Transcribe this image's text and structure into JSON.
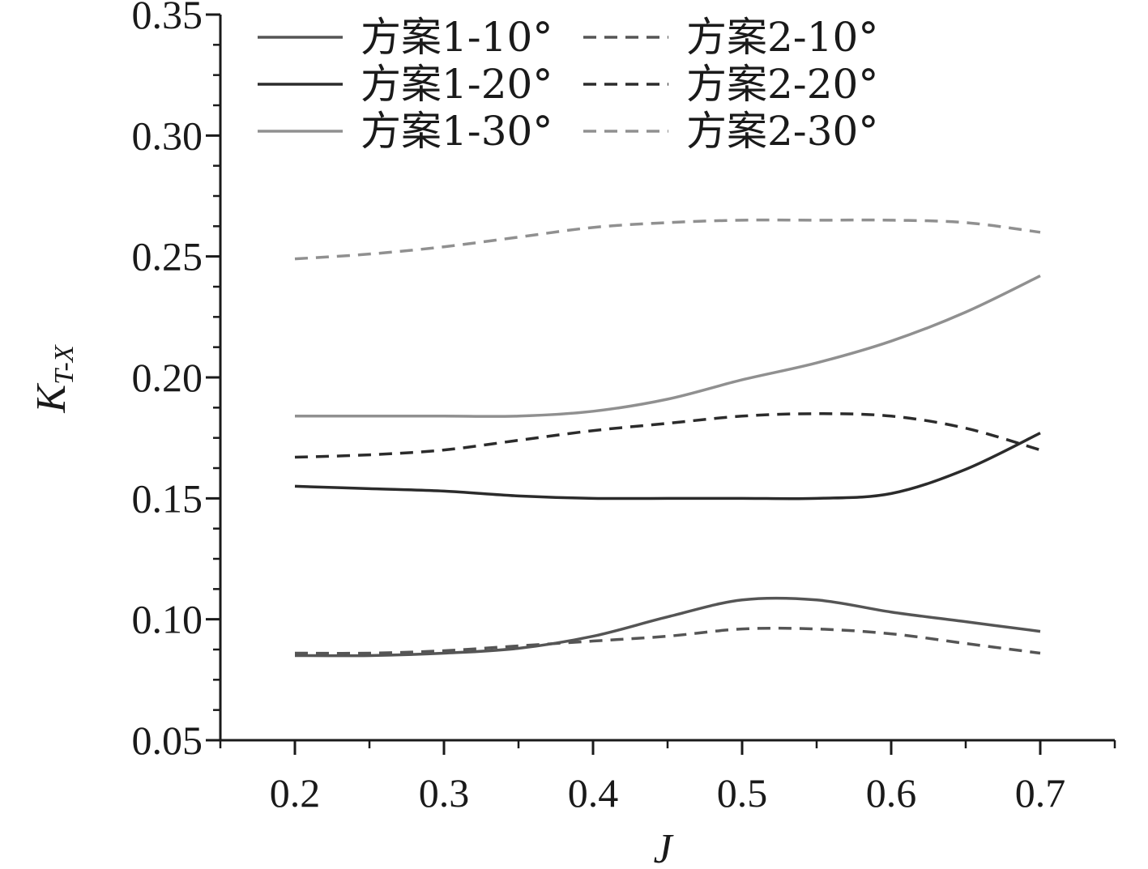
{
  "chart_data": {
    "type": "line",
    "xlabel": "J",
    "ylabel": {
      "main": "K",
      "sub": "T-X"
    },
    "xlim": [
      0.15,
      0.75
    ],
    "ylim": [
      0.05,
      0.35
    ],
    "x_ticks": [
      "0.2",
      "0.3",
      "0.4",
      "0.5",
      "0.6",
      "0.7"
    ],
    "y_ticks": [
      "0.05",
      "0.10",
      "0.15",
      "0.20",
      "0.25",
      "0.30",
      "0.35"
    ],
    "grid": false,
    "legend": "top-left, two columns",
    "x": [
      0.2,
      0.25,
      0.3,
      0.35,
      0.4,
      0.45,
      0.5,
      0.55,
      0.6,
      0.65,
      0.7
    ],
    "series": [
      {
        "name": "方案1-10°",
        "color": "#555555",
        "dash": "solid",
        "values": [
          0.085,
          0.085,
          0.086,
          0.088,
          0.093,
          0.101,
          0.108,
          0.108,
          0.103,
          0.099,
          0.095
        ]
      },
      {
        "name": "方案1-20°",
        "color": "#2b2b2b",
        "dash": "solid",
        "values": [
          0.155,
          0.154,
          0.153,
          0.151,
          0.15,
          0.15,
          0.15,
          0.15,
          0.152,
          0.162,
          0.177
        ]
      },
      {
        "name": "方案1-30°",
        "color": "#909090",
        "dash": "solid",
        "values": [
          0.184,
          0.184,
          0.184,
          0.184,
          0.186,
          0.191,
          0.199,
          0.206,
          0.215,
          0.227,
          0.242
        ]
      },
      {
        "name": "方案2-10°",
        "color": "#555555",
        "dash": "dashed",
        "values": [
          0.086,
          0.086,
          0.087,
          0.089,
          0.091,
          0.093,
          0.096,
          0.096,
          0.094,
          0.09,
          0.086
        ]
      },
      {
        "name": "方案2-20°",
        "color": "#2b2b2b",
        "dash": "dashed",
        "values": [
          0.167,
          0.168,
          0.17,
          0.174,
          0.178,
          0.181,
          0.184,
          0.185,
          0.184,
          0.179,
          0.17
        ]
      },
      {
        "name": "方案2-30°",
        "color": "#909090",
        "dash": "dashed",
        "values": [
          0.249,
          0.251,
          0.254,
          0.258,
          0.262,
          0.264,
          0.265,
          0.265,
          0.265,
          0.264,
          0.26
        ]
      }
    ]
  }
}
